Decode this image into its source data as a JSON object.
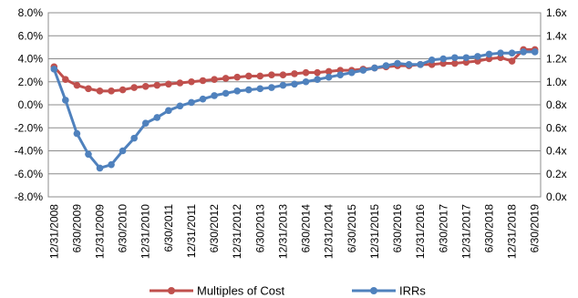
{
  "chart_data": {
    "type": "line",
    "title": "",
    "xlabel": "",
    "ylabel": "",
    "y_left": {
      "ticks": [
        "8.0%",
        "6.0%",
        "4.0%",
        "2.0%",
        "0.0%",
        "-2.0%",
        "-4.0%",
        "-6.0%",
        "-8.0%"
      ],
      "lim": [
        -8,
        8
      ],
      "unit": "%"
    },
    "y_right": {
      "ticks": [
        "1.6x",
        "1.4x",
        "1.2x",
        "1.0x",
        "0.8x",
        "0.6x",
        "0.4x",
        "0.2x",
        "0.0x"
      ],
      "lim": [
        0,
        1.6
      ],
      "unit": "x"
    },
    "x_tick_labels": [
      "12/31/2008",
      "6/30/2009",
      "12/31/2009",
      "6/30/2010",
      "12/31/2010",
      "6/30/2011",
      "12/31/2011",
      "6/30/2012",
      "12/31/2012",
      "6/30/2013",
      "12/31/2013",
      "6/30/2014",
      "12/31/2014",
      "6/30/2015",
      "12/31/2015",
      "6/30/2016",
      "12/31/2016",
      "6/30/2017",
      "12/31/2017",
      "6/30/2018",
      "12/31/2018",
      "6/30/2019"
    ],
    "quarters": 43,
    "grid": "horizontal",
    "legend_position": "bottom",
    "series": [
      {
        "name": "Multiples of Cost",
        "axis": "right",
        "color": "#C0504D",
        "values": [
          1.13,
          1.02,
          0.97,
          0.94,
          0.92,
          0.92,
          0.93,
          0.95,
          0.96,
          0.97,
          0.98,
          0.99,
          1.0,
          1.01,
          1.02,
          1.03,
          1.04,
          1.05,
          1.05,
          1.06,
          1.06,
          1.07,
          1.08,
          1.08,
          1.09,
          1.1,
          1.1,
          1.11,
          1.12,
          1.13,
          1.14,
          1.14,
          1.15,
          1.15,
          1.16,
          1.16,
          1.17,
          1.18,
          1.2,
          1.21,
          1.18,
          1.28,
          1.28
        ]
      },
      {
        "name": "IRRs",
        "axis": "left",
        "color": "#4F81BD",
        "values": [
          3.1,
          0.4,
          -2.5,
          -4.3,
          -5.5,
          -5.2,
          -4.0,
          -2.9,
          -1.6,
          -1.1,
          -0.5,
          -0.1,
          0.2,
          0.5,
          0.8,
          1.0,
          1.2,
          1.3,
          1.4,
          1.5,
          1.7,
          1.8,
          2.0,
          2.2,
          2.4,
          2.6,
          2.8,
          3.0,
          3.2,
          3.4,
          3.6,
          3.5,
          3.5,
          3.9,
          4.0,
          4.1,
          4.1,
          4.2,
          4.4,
          4.5,
          4.5,
          4.6,
          4.6
        ]
      }
    ]
  },
  "legend": {
    "items": [
      {
        "label": "Multiples of Cost",
        "color": "#C0504D"
      },
      {
        "label": "IRRs",
        "color": "#4F81BD"
      }
    ]
  }
}
